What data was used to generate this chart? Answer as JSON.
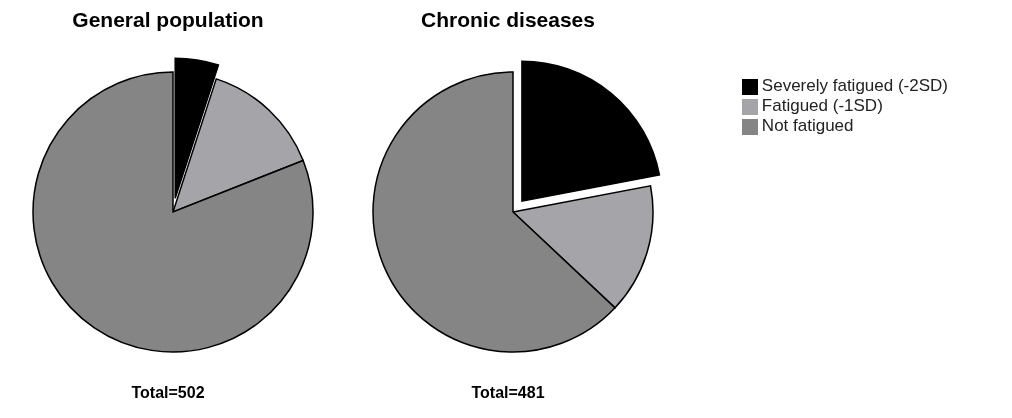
{
  "chart_data": [
    {
      "type": "pie",
      "title": "General population",
      "categories": [
        null,
        null,
        null
      ],
      "values": [
        5,
        14,
        81
      ],
      "colors": [
        "#000000",
        "#a5a5a9",
        "#858585"
      ],
      "legend": false,
      "annotations": [
        "Total=502"
      ]
    },
    {
      "type": "pie",
      "title": "Chronic diseases",
      "categories": [
        "Severely fatigued (-2SD)",
        "Fatigued (-1SD)",
        "Not fatigued"
      ],
      "values": [
        22,
        15,
        63
      ],
      "colors": [
        "#000000",
        "#a5a5a9",
        "#858585"
      ],
      "legend": "right",
      "annotations": [
        "Total=481"
      ]
    }
  ]
}
